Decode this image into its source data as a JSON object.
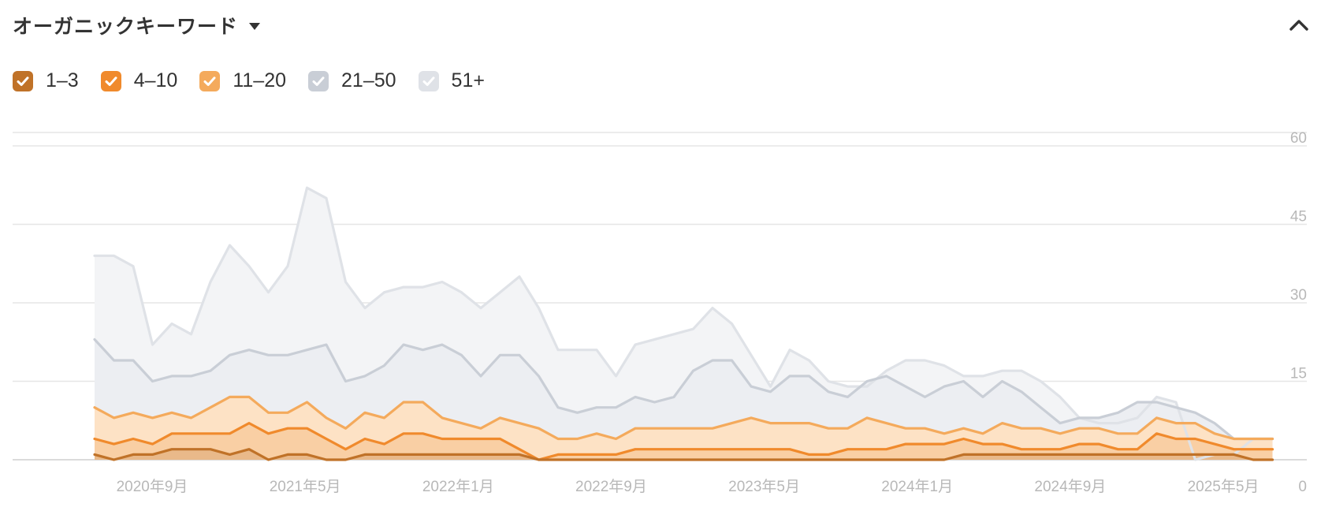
{
  "header": {
    "title": "オーガニックキーワード"
  },
  "legend": [
    {
      "label": "1–3",
      "color": "#c07228",
      "checked": true
    },
    {
      "label": "4–10",
      "color": "#f08a2c",
      "checked": true
    },
    {
      "label": "11–20",
      "color": "#f4aa5c",
      "checked": true
    },
    {
      "label": "21–50",
      "color": "#c9ced6",
      "checked": true
    },
    {
      "label": "51+",
      "color": "#dfe2e7",
      "checked": true
    }
  ],
  "chart_data": {
    "type": "area",
    "stacked": false,
    "ylim": [
      0,
      60
    ],
    "yticks": [
      "0",
      "15",
      "30",
      "45",
      "60"
    ],
    "xticks": [
      "2020年9月",
      "2021年5月",
      "2022年1月",
      "2022年9月",
      "2023年5月",
      "2024年1月",
      "2024年9月",
      "2025年5月"
    ],
    "grid": true,
    "x_start": "2020-06",
    "x_step": "half-month",
    "series": [
      {
        "name": "51+",
        "color": "#dfe2e7",
        "values": [
          39,
          39,
          37,
          22,
          26,
          24,
          34,
          41,
          37,
          32,
          37,
          52,
          50,
          34,
          29,
          32,
          33,
          33,
          34,
          32,
          29,
          32,
          35,
          29,
          21,
          21,
          21,
          16,
          22,
          23,
          24,
          25,
          29,
          26,
          20,
          14,
          21,
          19,
          15,
          14,
          14,
          17,
          19,
          19,
          18,
          16,
          16,
          17,
          17,
          15,
          12,
          8,
          7,
          7,
          8,
          12,
          11,
          0,
          1,
          1,
          4,
          4
        ]
      },
      {
        "name": "21–50",
        "color": "#c9ced6",
        "values": [
          23,
          19,
          19,
          15,
          16,
          16,
          17,
          20,
          21,
          20,
          20,
          21,
          22,
          15,
          16,
          18,
          22,
          21,
          22,
          20,
          16,
          20,
          20,
          16,
          10,
          9,
          10,
          10,
          12,
          11,
          12,
          17,
          19,
          19,
          14,
          13,
          16,
          16,
          13,
          12,
          15,
          16,
          14,
          12,
          14,
          15,
          12,
          15,
          13,
          10,
          7,
          8,
          8,
          9,
          11,
          11,
          10,
          9,
          7,
          4,
          4,
          4
        ]
      },
      {
        "name": "11–20",
        "color": "#f4aa5c",
        "values": [
          10,
          8,
          9,
          8,
          9,
          8,
          10,
          12,
          12,
          9,
          9,
          11,
          8,
          6,
          9,
          8,
          11,
          11,
          8,
          7,
          6,
          8,
          7,
          6,
          4,
          4,
          5,
          4,
          6,
          6,
          6,
          6,
          6,
          7,
          8,
          7,
          7,
          7,
          6,
          6,
          8,
          7,
          6,
          6,
          5,
          6,
          5,
          7,
          6,
          6,
          5,
          6,
          6,
          5,
          5,
          8,
          7,
          7,
          5,
          4,
          4,
          4
        ]
      },
      {
        "name": "4–10",
        "color": "#f08a2c",
        "values": [
          4,
          3,
          4,
          3,
          5,
          5,
          5,
          5,
          7,
          5,
          6,
          6,
          4,
          2,
          4,
          3,
          5,
          5,
          4,
          4,
          4,
          4,
          2,
          0,
          1,
          1,
          1,
          1,
          2,
          2,
          2,
          2,
          2,
          2,
          2,
          2,
          2,
          1,
          1,
          2,
          2,
          2,
          3,
          3,
          3,
          4,
          3,
          3,
          2,
          2,
          2,
          3,
          3,
          2,
          2,
          5,
          4,
          4,
          3,
          2,
          2,
          2
        ]
      },
      {
        "name": "1–3",
        "color": "#c07228",
        "values": [
          1,
          0,
          1,
          1,
          2,
          2,
          2,
          1,
          2,
          0,
          1,
          1,
          0,
          0,
          1,
          1,
          1,
          1,
          1,
          1,
          1,
          1,
          1,
          0,
          0,
          0,
          0,
          0,
          0,
          0,
          0,
          0,
          0,
          0,
          0,
          0,
          0,
          0,
          0,
          0,
          0,
          0,
          0,
          0,
          0,
          1,
          1,
          1,
          1,
          1,
          1,
          1,
          1,
          1,
          1,
          1,
          1,
          1,
          1,
          1,
          0,
          0
        ]
      }
    ]
  }
}
